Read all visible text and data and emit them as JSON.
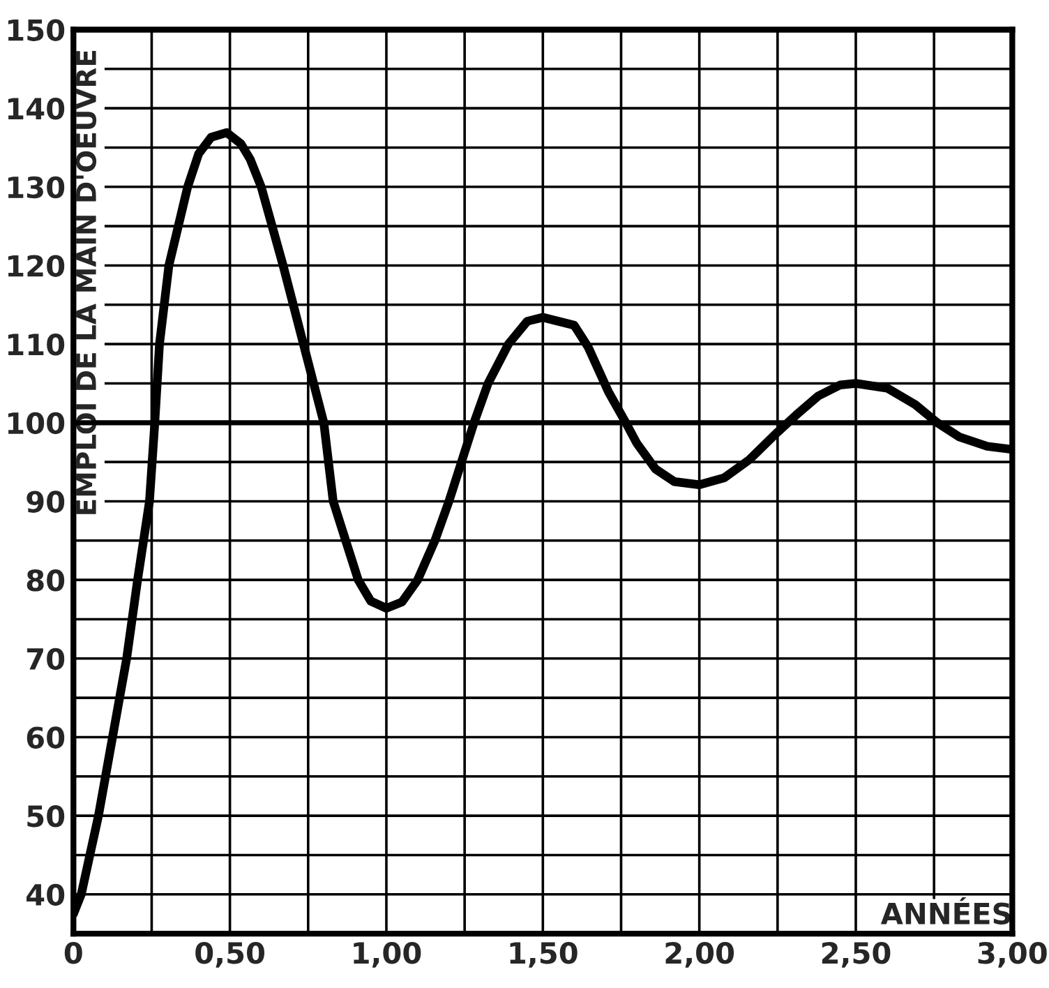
{
  "chart_data": {
    "type": "line",
    "xlabel": "ANNÉES",
    "ylabel": "EMPLOI DE LA MAIN D'OEUVRE",
    "x": [
      0,
      0.025,
      0.08,
      0.125,
      0.17,
      0.205,
      0.243,
      0.26,
      0.275,
      0.305,
      0.365,
      0.4,
      0.44,
      0.49,
      0.535,
      0.565,
      0.6,
      0.67,
      0.735,
      0.8,
      0.83,
      0.87,
      0.91,
      0.95,
      1.0,
      1.05,
      1.1,
      1.155,
      1.2,
      1.24,
      1.28,
      1.325,
      1.39,
      1.45,
      1.5,
      1.6,
      1.645,
      1.71,
      1.765,
      1.8,
      1.86,
      1.92,
      2.0,
      2.08,
      2.16,
      2.25,
      2.31,
      2.38,
      2.45,
      2.5,
      2.6,
      2.69,
      2.76,
      2.83,
      2.92,
      3.0
    ],
    "series": [
      {
        "color": "#000000",
        "values": [
          37.5,
          40,
          50,
          60,
          70,
          80,
          90,
          100,
          110,
          120,
          130,
          134.2,
          136.3,
          136.9,
          135.5,
          133.5,
          130,
          120,
          110,
          100,
          90,
          85,
          80,
          77.3,
          76.4,
          77.2,
          80,
          85,
          90,
          95,
          100,
          105,
          110,
          112.9,
          113.4,
          112.4,
          109.6,
          103.9,
          100,
          97.4,
          94.1,
          92.5,
          92.1,
          93.0,
          95.3,
          98.8,
          101,
          103.4,
          104.8,
          105,
          104.4,
          102.3,
          100,
          98.2,
          97,
          96.6
        ]
      }
    ],
    "xlim": [
      0,
      3.0
    ],
    "ylim": [
      35,
      150
    ],
    "xticks": [
      0,
      {
        "value": 0.25,
        "label": null
      },
      {
        "value": 0.5,
        "label": "0,50"
      },
      {
        "value": 0.75,
        "label": null
      },
      {
        "value": 1.0,
        "label": "1,00"
      },
      {
        "value": 1.25,
        "label": null
      },
      {
        "value": 1.5,
        "label": "1,50"
      },
      {
        "value": 1.75,
        "label": null
      },
      {
        "value": 2.0,
        "label": "2,00"
      },
      {
        "value": 2.25,
        "label": null
      },
      {
        "value": 2.5,
        "label": "2,50"
      },
      {
        "value": 2.75,
        "label": null
      },
      {
        "value": 3.0,
        "label": "3,00"
      }
    ],
    "yticks": [
      40,
      {
        "value": 45,
        "label": null
      },
      50,
      {
        "value": 55,
        "label": null
      },
      60,
      {
        "value": 65,
        "label": null
      },
      70,
      {
        "value": 75,
        "label": null
      },
      80,
      {
        "value": 85,
        "label": null
      },
      90,
      {
        "value": 95,
        "label": null
      },
      100,
      {
        "value": 105,
        "label": null
      },
      110,
      {
        "value": 115,
        "label": null
      },
      120,
      {
        "value": 125,
        "label": null
      },
      130,
      {
        "value": 135,
        "label": null
      },
      140,
      {
        "value": 145,
        "label": null
      },
      150
    ],
    "ref_lines": [
      {
        "axis": "y",
        "value": 100,
        "color": "#000000"
      }
    ],
    "grid": true,
    "marker": "none",
    "line_style": "solid"
  }
}
